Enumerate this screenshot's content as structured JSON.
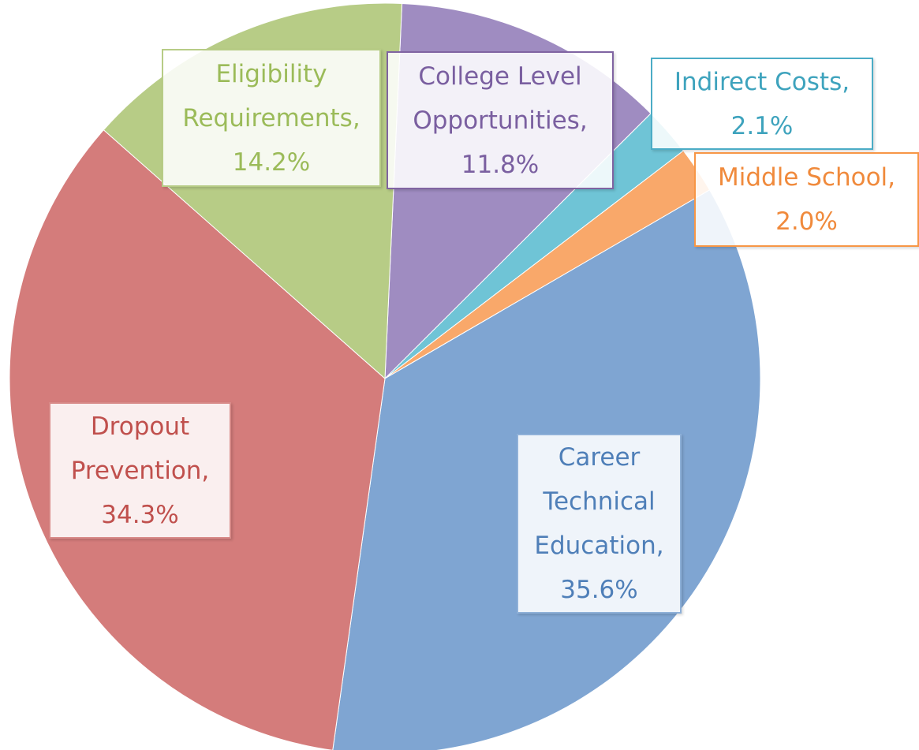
{
  "chart_data": {
    "type": "pie",
    "categories": [
      "College Level Opportunities,",
      "Indirect Costs,",
      "Middle School,",
      "Career Technical Education,",
      "Dropout Prevention,",
      "Eligibility Requirements,"
    ],
    "values": [
      11.8,
      2.1,
      2.0,
      35.6,
      34.3,
      14.2
    ],
    "value_labels": [
      "11.8%",
      "2.1%",
      "2.0%",
      "35.6%",
      "34.3%",
      "14.2%"
    ],
    "colors": [
      "#9f8cc1",
      "#6fc4d6",
      "#f9a86a",
      "#7fa5d2",
      "#d47c7b",
      "#b7cc86"
    ]
  }
}
